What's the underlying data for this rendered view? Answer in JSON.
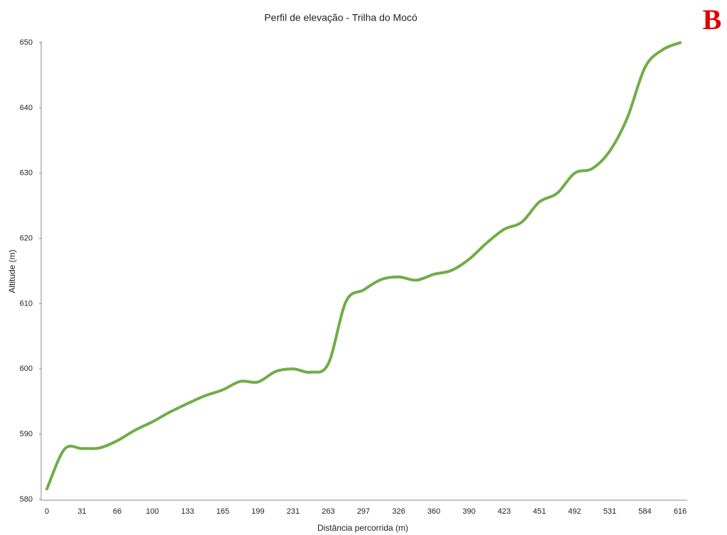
{
  "chart_data": {
    "type": "line",
    "title": "Perfil de elevação - Trilha  do Mocó",
    "panel_label": "B",
    "x_label": "Distância percorrida (m)",
    "y_label": "Altitude (m)",
    "categories": [
      "0",
      null,
      "31",
      null,
      "66",
      null,
      "100",
      null,
      "133",
      null,
      "165",
      null,
      "199",
      null,
      "231",
      null,
      "263",
      null,
      "297",
      null,
      "326",
      null,
      "360",
      null,
      "390",
      null,
      "423",
      null,
      "451",
      null,
      "492",
      null,
      "531",
      null,
      "584",
      null,
      "616"
    ],
    "series": [
      {
        "name": "Altitude",
        "color": "#70ad47",
        "values": [
          581.6,
          587.7,
          587.8,
          587.9,
          589.0,
          590.6,
          591.9,
          593.4,
          594.7,
          595.9,
          596.8,
          598.1,
          598.0,
          599.6,
          600.0,
          599.5,
          600.8,
          610.3,
          612.1,
          613.7,
          614.1,
          613.6,
          614.5,
          615.1,
          616.8,
          619.3,
          621.4,
          622.5,
          625.6,
          626.9,
          630.0,
          630.7,
          633.4,
          638.5,
          646.2,
          648.9,
          650.0
        ]
      }
    ],
    "ylim": [
      580,
      650
    ],
    "yticks": [
      580,
      590,
      600,
      610,
      620,
      630,
      640,
      650
    ],
    "grid": false
  }
}
